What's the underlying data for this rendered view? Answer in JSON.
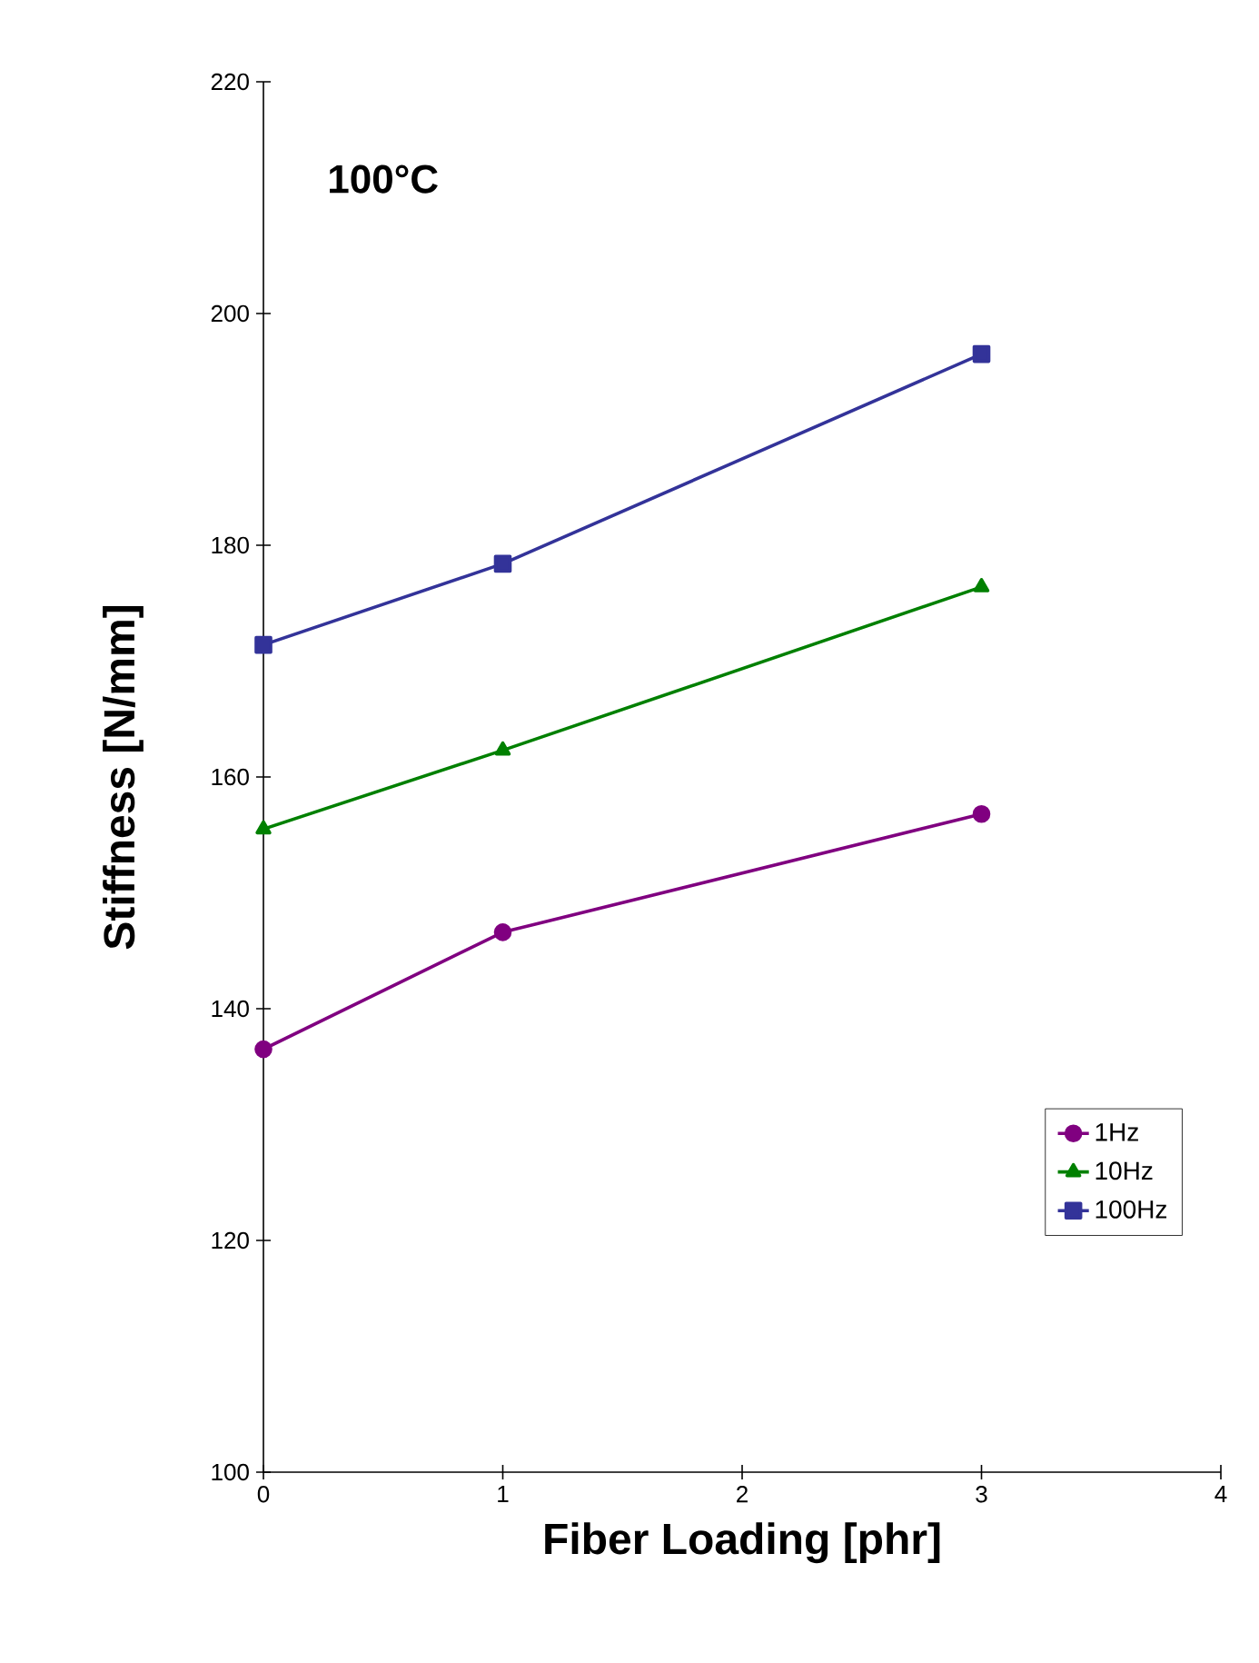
{
  "chart_data": {
    "type": "line",
    "xlabel": "Fiber Loading [phr]",
    "ylabel": "Stiffness [N/mm]",
    "annotations": [
      "100°C"
    ],
    "x": [
      0,
      1,
      3
    ],
    "series": [
      {
        "name": "1Hz",
        "color": "#800080",
        "marker": "circle",
        "values": [
          136.5,
          146.6,
          156.8
        ]
      },
      {
        "name": "10Hz",
        "color": "#008000",
        "marker": "triangle",
        "values": [
          155.5,
          162.3,
          176.4
        ]
      },
      {
        "name": "100Hz",
        "color": "#333399",
        "marker": "square",
        "values": [
          171.4,
          178.4,
          196.5
        ]
      }
    ],
    "xlim": [
      0,
      4
    ],
    "xticks": [
      0,
      1,
      2,
      3,
      4
    ],
    "ylim": [
      100,
      220
    ],
    "yticks": [
      100,
      120,
      140,
      160,
      180,
      200,
      220
    ],
    "grid": false,
    "legend": "bottom right",
    "line_style": "solid"
  }
}
